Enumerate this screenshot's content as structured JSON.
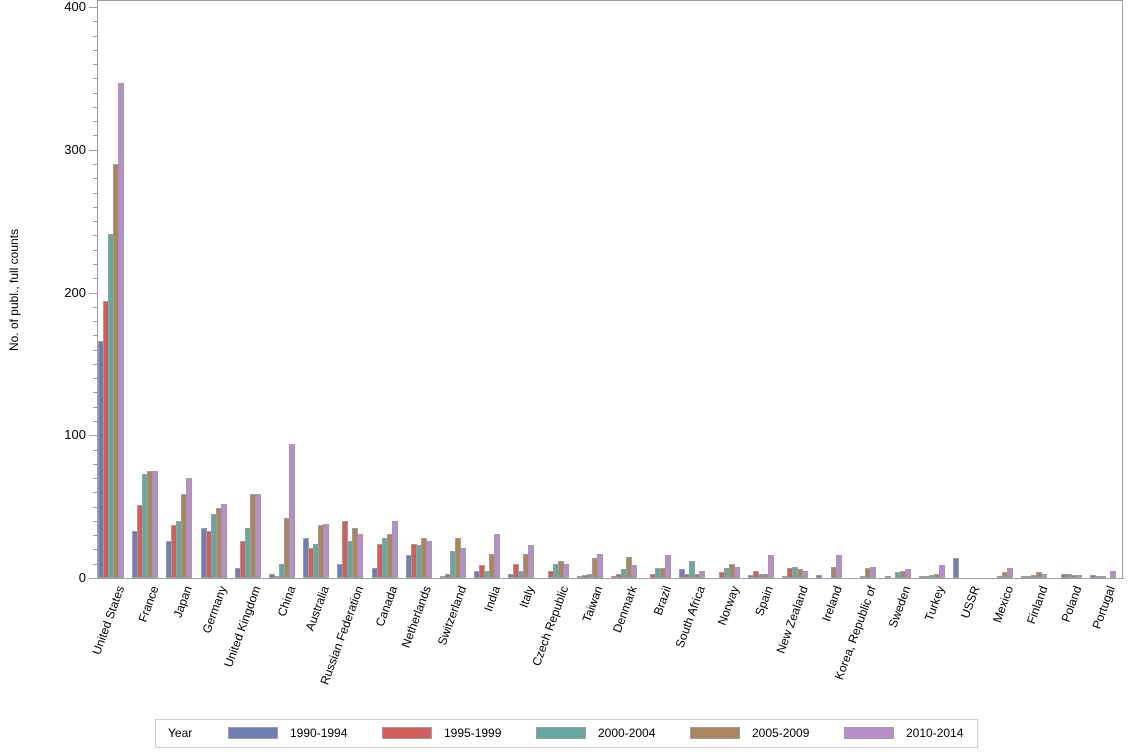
{
  "chart_data": {
    "type": "bar",
    "title": "",
    "xlabel": "",
    "ylabel": "No. of publ., full counts",
    "ylim": [
      0,
      400
    ],
    "yticks": [
      0,
      100,
      200,
      300,
      400
    ],
    "grid": false,
    "legend_position": "bottom",
    "legend_title": "Year",
    "categories": [
      "United States",
      "France",
      "Japan",
      "Germany",
      "United Kingdom",
      "China",
      "Australia",
      "Russian Federation",
      "Canada",
      "Netherlands",
      "Switzerland",
      "India",
      "Italy",
      "Czech Republic",
      "Taiwan",
      "Denmark",
      "Brazil",
      "South Africa",
      "Norway",
      "Spain",
      "New Zealand",
      "Ireland",
      "Korea, Republic of",
      "Sweden",
      "Turkey",
      "USSR",
      "Mexico",
      "Finland",
      "Poland",
      "Portugal"
    ],
    "series": [
      {
        "name": "1990-1994",
        "color": "#6f7fb6",
        "values": [
          166,
          33,
          26,
          35,
          7,
          3,
          28,
          10,
          7,
          16,
          1,
          5,
          3,
          0,
          1,
          1,
          0,
          6,
          0,
          2,
          1,
          2,
          0,
          1,
          1,
          14,
          0,
          1,
          0,
          2
        ]
      },
      {
        "name": "1995-1999",
        "color": "#d35d5d",
        "values": [
          194,
          51,
          37,
          33,
          26,
          1,
          21,
          40,
          24,
          24,
          3,
          9,
          10,
          5,
          2,
          3,
          3,
          3,
          4,
          5,
          7,
          0,
          0,
          0,
          1,
          0,
          0,
          1,
          3,
          1
        ]
      },
      {
        "name": "2000-2004",
        "color": "#66a8a0",
        "values": [
          241,
          73,
          40,
          45,
          35,
          10,
          24,
          26,
          28,
          23,
          19,
          5,
          5,
          10,
          3,
          6,
          7,
          12,
          7,
          3,
          8,
          0,
          1,
          4,
          2,
          0,
          1,
          2,
          3,
          1
        ]
      },
      {
        "name": "2005-2009",
        "color": "#a8875e",
        "values": [
          290,
          75,
          59,
          49,
          59,
          42,
          37,
          35,
          31,
          28,
          28,
          17,
          17,
          12,
          14,
          15,
          7,
          3,
          10,
          3,
          6,
          8,
          7,
          5,
          3,
          0,
          4,
          4,
          2,
          0
        ]
      },
      {
        "name": "2010-2014",
        "color": "#b98ccc",
        "values": [
          347,
          75,
          70,
          52,
          59,
          94,
          38,
          31,
          40,
          26,
          21,
          31,
          23,
          10,
          17,
          9,
          16,
          5,
          8,
          16,
          5,
          16,
          8,
          6,
          9,
          0,
          7,
          3,
          2,
          5
        ]
      }
    ]
  },
  "axis": {
    "y_title": "No. of publ., full counts",
    "y_tick_labels": [
      "0",
      "100",
      "200",
      "300",
      "400"
    ]
  },
  "legend": {
    "title": "Year",
    "items": [
      {
        "label": "1990-1994",
        "color": "#6f7fb6"
      },
      {
        "label": "1995-1999",
        "color": "#d35d5d"
      },
      {
        "label": "2000-2004",
        "color": "#66a8a0"
      },
      {
        "label": "2005-2009",
        "color": "#a8875e"
      },
      {
        "label": "2010-2014",
        "color": "#b98ccc"
      }
    ]
  }
}
